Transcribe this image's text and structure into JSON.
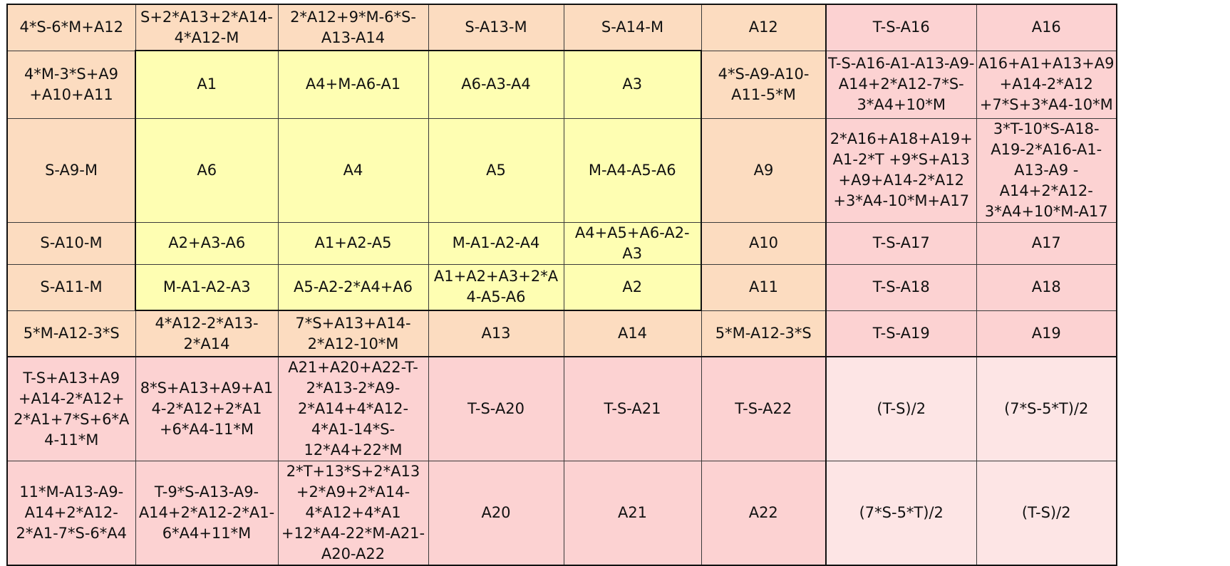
{
  "colors": {
    "orange": "#fcdcc0",
    "yellow": "#fefeb2",
    "pink": "#fcd2d2",
    "light_pink": "#fde5e5"
  },
  "rows": [
    [
      "4*S-6*M+A12",
      "S+2*A13+2*A14-4*A12-M",
      "2*A12+9*M-6*S-A13-A14",
      "S-A13-M",
      "S-A14-M",
      "A12",
      "T-S-A16",
      "A16"
    ],
    [
      "4*M-3*S+A9 +A10+A11",
      "A1",
      "A4+M-A6-A1",
      "A6-A3-A4",
      "A3",
      "4*S-A9-A10-A11-5*M",
      "T-S-A16-A1-A13-A9-A14+2*A12-7*S-3*A4+10*M",
      "A16+A1+A13+A9 +A14-2*A12 +7*S+3*A4-10*M"
    ],
    [
      "S-A9-M",
      "A6",
      "A4",
      "A5",
      "M-A4-A5-A6",
      "A9",
      "2*A16+A18+A19+ A1-2*T +9*S+A13 +A9+A14-2*A12 +3*A4-10*M+A17",
      "3*T-10*S-A18-A19-2*A16-A1-A13-A9 -A14+2*A12-3*A4+10*M-A17"
    ],
    [
      "S-A10-M",
      "A2+A3-A6",
      "A1+A2-A5",
      "M-A1-A2-A4",
      "A4+A5+A6-A2-A3",
      "A10",
      "T-S-A17",
      "A17"
    ],
    [
      "S-A11-M",
      "M-A1-A2-A3",
      "A5-A2-2*A4+A6",
      "A1+A2+A3+2*A4-A5-A6",
      "A2",
      "A11",
      "T-S-A18",
      "A18"
    ],
    [
      "5*M-A12-3*S",
      "4*A12-2*A13-2*A14",
      "7*S+A13+A14-2*A12-10*M",
      "A13",
      "A14",
      "5*M-A12-3*S",
      "T-S-A19",
      "A19"
    ],
    [
      "T-S+A13+A9 +A14-2*A12+ 2*A1+7*S+6*A4-11*M",
      "8*S+A13+A9+A14-2*A12+2*A1 +6*A4-11*M",
      "A21+A20+A22-T-2*A13-2*A9-2*A14+4*A12-4*A1-14*S-12*A4+22*M",
      "T-S-A20",
      "T-S-A21",
      "T-S-A22",
      "(T-S)/2",
      "(7*S-5*T)/2"
    ],
    [
      "11*M-A13-A9-A14+2*A12-2*A1-7*S-6*A4",
      "T-9*S-A13-A9-A14+2*A12-2*A1-6*A4+11*M",
      "2*T+13*S+2*A13 +2*A9+2*A14-4*A12+4*A1 +12*A4-22*M-A21-A20-A22",
      "A20",
      "A21",
      "A22",
      "(7*S-5*T)/2",
      "(T-S)/2"
    ]
  ]
}
